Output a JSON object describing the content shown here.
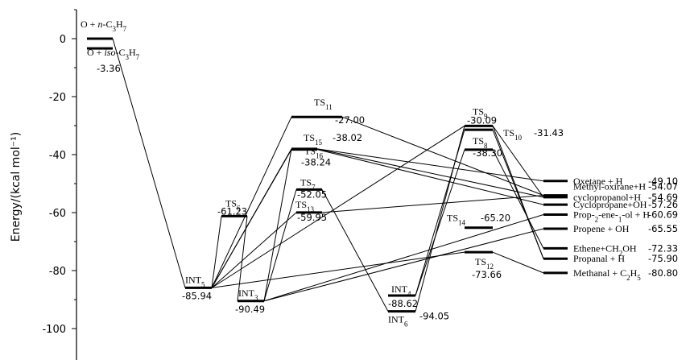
{
  "axis": {
    "ylabel": "Energy/(kcal mol⁻¹)",
    "ylim": [
      -110,
      10
    ],
    "ticks": [
      0,
      -20,
      -40,
      -60,
      -80,
      -100
    ],
    "tick_labels": [
      "0",
      "-20",
      "-40",
      "-60",
      "-80",
      "-100"
    ]
  },
  "species": [
    {
      "id": "O+n-C3H7",
      "energy": 0,
      "name": "O + n-C3H7",
      "value": ""
    },
    {
      "id": "O+iso-C3H7",
      "energy": -3.36,
      "name": "O + iso-C3H7",
      "value": "-3.36"
    },
    {
      "id": "INT5",
      "energy": -85.94,
      "name": "INT5",
      "value": "-85.94"
    },
    {
      "id": "TS6",
      "energy": -61.23,
      "name": "TS6",
      "value": "-61.23"
    },
    {
      "id": "INT3",
      "energy": -90.49,
      "name": "INT3",
      "value": "-90.49"
    },
    {
      "id": "TS11",
      "energy": -27.0,
      "name": "TS11",
      "value": "-27.00"
    },
    {
      "id": "TS15",
      "energy": -38.02,
      "name": "TS15",
      "value": "-38.02"
    },
    {
      "id": "TS16",
      "energy": -38.24,
      "name": "TS16",
      "value": "-38.24"
    },
    {
      "id": "TS7",
      "energy": -52.05,
      "name": "TS7",
      "value": "-52.05"
    },
    {
      "id": "TS13",
      "energy": -59.95,
      "name": "TS13",
      "value": "-59.95"
    },
    {
      "id": "INT4",
      "energy": -88.62,
      "name": "INT4",
      "value": "-88.62"
    },
    {
      "id": "INT6",
      "energy": -94.05,
      "name": "INT6",
      "value": "-94.05"
    },
    {
      "id": "TS9",
      "energy": -30.09,
      "name": "TS9",
      "value": "-30.09"
    },
    {
      "id": "TS10",
      "energy": -31.43,
      "name": "TS10",
      "value": "-31.43"
    },
    {
      "id": "TS8",
      "energy": -38.3,
      "name": "TS8",
      "value": "-38.30"
    },
    {
      "id": "TS14",
      "energy": -65.2,
      "name": "TS14",
      "value": "-65.20"
    },
    {
      "id": "TS12",
      "energy": -73.66,
      "name": "TS12",
      "value": "-73.66"
    },
    {
      "id": "P_oxetane",
      "energy": -49.1,
      "name": "Oxetane + H",
      "value": "-49.10"
    },
    {
      "id": "P_methyloxirane",
      "energy": -54.07,
      "name": "Methyl-oxirane+H",
      "value": "-54.07"
    },
    {
      "id": "P_cyclopropanol",
      "energy": -54.69,
      "name": "cyclopropanol+H",
      "value": "-54.69"
    },
    {
      "id": "P_cyclopropane",
      "energy": -57.26,
      "name": "Cyclopropane+OH",
      "value": "-57.26"
    },
    {
      "id": "P_prop2ene1ol",
      "energy": -60.69,
      "name": "Prop-2-ene-1-ol + H",
      "value": "-60.69"
    },
    {
      "id": "P_propene",
      "energy": -65.55,
      "name": "Propene + OH",
      "value": "-65.55"
    },
    {
      "id": "P_propanal",
      "energy": -75.9,
      "name": "Propanal + H",
      "value": "-75.90"
    },
    {
      "id": "P_ethene",
      "energy": -72.33,
      "name": "Ethene+CH2OH",
      "value": "-72.33"
    },
    {
      "id": "P_methanal",
      "energy": -80.8,
      "name": "Methanal + C2H5",
      "value": "-80.80"
    }
  ],
  "connections": [
    [
      "O+n-C3H7",
      "INT5"
    ],
    [
      "INT5",
      "TS6"
    ],
    [
      "TS6",
      "INT3"
    ],
    [
      "INT5",
      "TS11"
    ],
    [
      "TS11",
      "P_methyloxirane"
    ],
    [
      "INT5",
      "TS15"
    ],
    [
      "TS15",
      "P_cyclopropanol"
    ],
    [
      "INT5",
      "TS16"
    ],
    [
      "TS16",
      "P_cyclopropane"
    ],
    [
      "INT5",
      "TS13"
    ],
    [
      "TS13",
      "P_methyloxirane"
    ],
    [
      "INT5",
      "TS9"
    ],
    [
      "TS9",
      "P_propanal"
    ],
    [
      "INT5",
      "TS12"
    ],
    [
      "TS12",
      "P_methanal"
    ],
    [
      "INT3",
      "TS15"
    ],
    [
      "TS15",
      "P_oxetane"
    ],
    [
      "INT3",
      "TS7"
    ],
    [
      "TS7",
      "INT6"
    ],
    [
      "INT3",
      "P_prop2ene1ol"
    ],
    [
      "INT3",
      "P_propene"
    ],
    [
      "INT6",
      "TS9"
    ],
    [
      "TS9",
      "P_cyclopropanol"
    ],
    [
      "INT4",
      "TS8"
    ],
    [
      "TS8",
      "P_ethene"
    ],
    [
      "INT4",
      "TS10"
    ],
    [
      "TS10",
      "P_propanal"
    ]
  ]
}
